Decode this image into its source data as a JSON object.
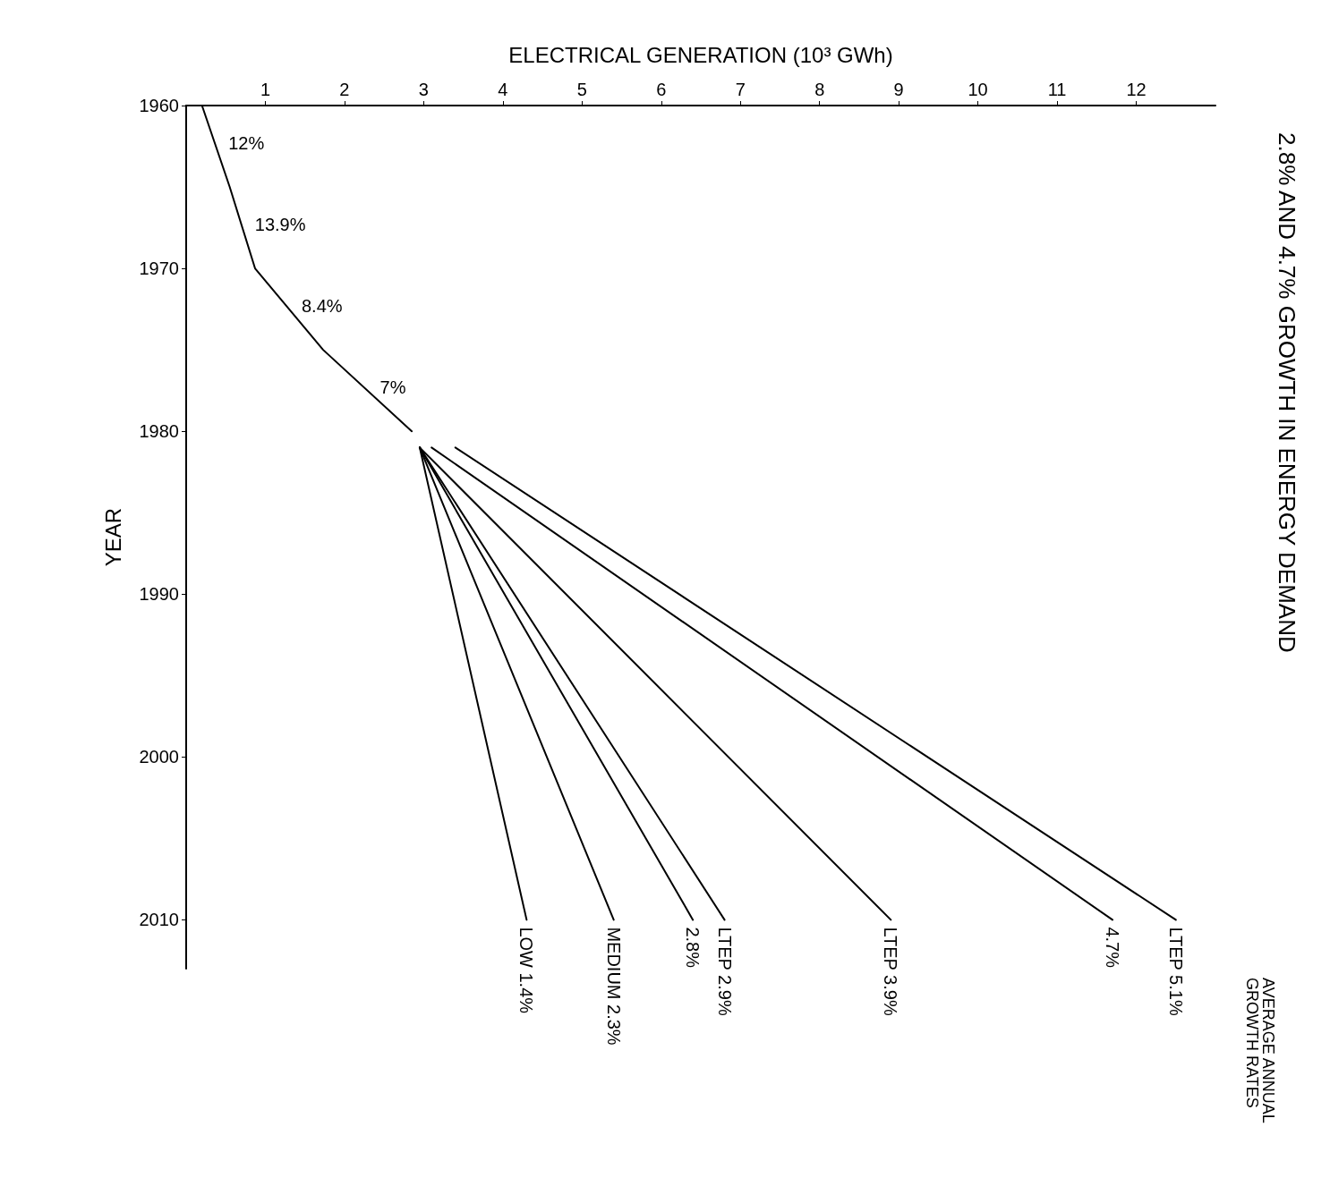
{
  "chart_data": {
    "type": "line",
    "orientation": "horizontal",
    "title": "2.8% AND 4.7% GROWTH IN ENERGY DEMAND",
    "xlabel": "ELECTRICAL GENERATION (10³ GWh)",
    "ylabel": "YEAR",
    "xlim": [
      0,
      13
    ],
    "xticks": [
      1,
      2,
      3,
      4,
      5,
      6,
      7,
      8,
      9,
      10,
      11,
      12
    ],
    "ylim": [
      2013,
      1960
    ],
    "yticks": [
      1960,
      1970,
      1980,
      1990,
      2000,
      2010
    ],
    "legend": false,
    "grid": false,
    "marker": "none",
    "series": [
      {
        "color": "#000000",
        "x": [
          1960,
          1965,
          1970,
          1975,
          1980
        ],
        "values": [
          0.2,
          0.55,
          0.87,
          1.73,
          2.85
        ]
      },
      {
        "name": "LOW 1.4%",
        "color": "#000000",
        "x": [
          1981,
          2010
        ],
        "values": [
          2.95,
          4.3
        ]
      },
      {
        "name": "MEDIUM 2.3%",
        "color": "#000000",
        "x": [
          1981,
          2010
        ],
        "values": [
          2.95,
          5.4
        ]
      },
      {
        "name": "2.8%",
        "color": "#000000",
        "x": [
          1981,
          2010
        ],
        "values": [
          2.95,
          6.4
        ]
      },
      {
        "name": "LTEP 2.9%",
        "color": "#000000",
        "x": [
          1981,
          2010
        ],
        "values": [
          2.95,
          6.8
        ]
      },
      {
        "name": "LTEP 3.9%",
        "color": "#000000",
        "x": [
          1981,
          2010
        ],
        "values": [
          2.95,
          8.9
        ]
      },
      {
        "name": "4.7%",
        "color": "#000000",
        "x": [
          1981,
          2010
        ],
        "values": [
          3.1,
          11.7
        ]
      },
      {
        "name": "LTEP 5.1%",
        "color": "#000000",
        "x": [
          1981,
          2010
        ],
        "values": [
          3.4,
          12.5
        ]
      }
    ],
    "annotations": [
      {
        "text": "12%",
        "x": 0.375,
        "y": 1962.5
      },
      {
        "text": "13.9%",
        "x": 0.71,
        "y": 1967.5
      },
      {
        "text": "8.4%",
        "x": 1.3,
        "y": 1972.5
      },
      {
        "text": "7%",
        "x": 2.29,
        "y": 1977.5
      },
      "AVERAGE ANNUAL GROWTH RATES"
    ]
  }
}
